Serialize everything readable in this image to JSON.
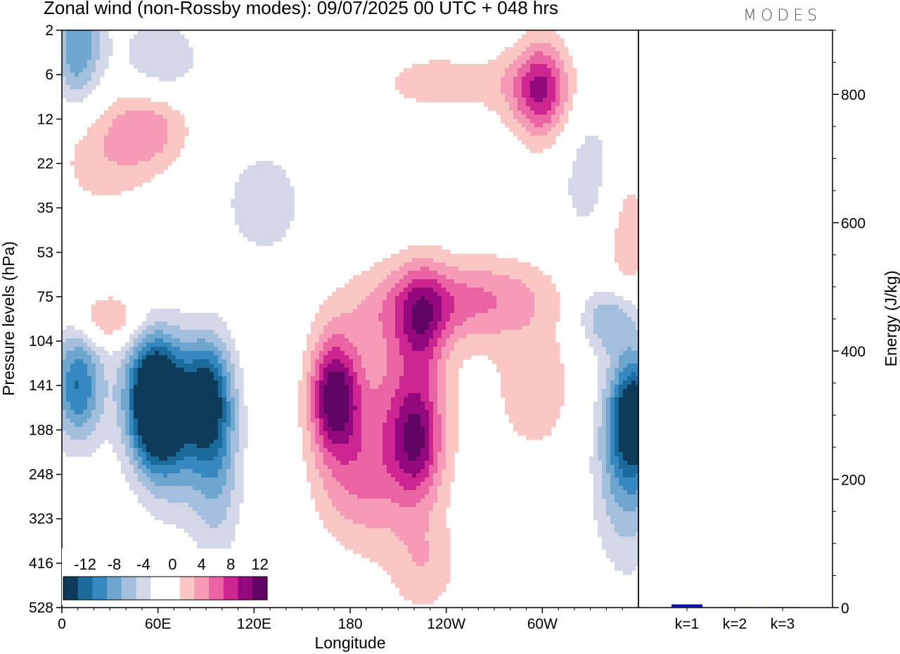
{
  "header": {
    "title": "Zonal wind (non-Rossby modes):  09/07/2025  00 UTC  + 048 hrs",
    "logo_text": "MODES"
  },
  "chart_data": [
    {
      "type": "heatmap",
      "title": "Zonal wind (non-Rossby modes):  09/07/2025  00 UTC  + 048 hrs",
      "xlabel": "Longitude",
      "ylabel": "Pressure levels (hPa)",
      "x_ticks": [
        "0",
        "60E",
        "120E",
        "180",
        "120W",
        "60W"
      ],
      "x_tick_values": [
        0,
        60,
        120,
        180,
        240,
        300
      ],
      "xlim": [
        0,
        360
      ],
      "y_ticks": [
        "2",
        "6",
        "12",
        "22",
        "35",
        "53",
        "75",
        "104",
        "141",
        "188",
        "248",
        "323",
        "416",
        "528"
      ],
      "colorbar": {
        "labels": [
          "-12",
          "-8",
          "-4",
          "0",
          "4",
          "8",
          "12"
        ],
        "levels": [
          -14,
          -12,
          -10,
          -8,
          -6,
          -4,
          -2,
          0,
          2,
          4,
          6,
          8,
          10,
          12,
          14
        ],
        "colors": [
          "#0d3b59",
          "#1a6a9c",
          "#3788c0",
          "#6ea6d0",
          "#a3bfdc",
          "#d3d7e8",
          "#ffffff",
          "#ffffff",
          "#f9c8c4",
          "#f59bb5",
          "#ea64a4",
          "#cd2590",
          "#94087d",
          "#5e0461"
        ]
      },
      "features": [
        {
          "name": "easterly core",
          "lon": 60,
          "level_hPa": 160,
          "value": -14
        },
        {
          "name": "easterly band",
          "lon": 90,
          "level_hPa": 150,
          "value": -10
        },
        {
          "name": "easterly band west",
          "lon": 10,
          "level_hPa": 141,
          "value": -10
        },
        {
          "name": "easterly eastern edge",
          "lon": 358,
          "level_hPa": 170,
          "value": -12
        },
        {
          "name": "westerly core",
          "lon": 170,
          "level_hPa": 150,
          "value": 13
        },
        {
          "name": "westerly lobe",
          "lon": 222,
          "level_hPa": 200,
          "value": 8
        },
        {
          "name": "westerly tilted band",
          "lon": 225,
          "level_hPa": 90,
          "value": 6
        },
        {
          "name": "stratospheric easterly",
          "lon": 10,
          "level_hPa": 3,
          "value": -8
        },
        {
          "name": "stratospheric westerly",
          "lon": 300,
          "level_hPa": 8,
          "value": 6
        }
      ]
    },
    {
      "type": "bar",
      "categories": [
        "k=1",
        "k=2",
        "k=3"
      ],
      "values": [
        5,
        1,
        1
      ],
      "ylabel": "Energy (J/kg)",
      "ylim": [
        0,
        900
      ],
      "y_ticks": [
        "0",
        "200",
        "400",
        "600",
        "800"
      ],
      "y_tick_values": [
        0,
        200,
        400,
        600,
        800
      ],
      "bar_color": "#1010b0"
    }
  ]
}
